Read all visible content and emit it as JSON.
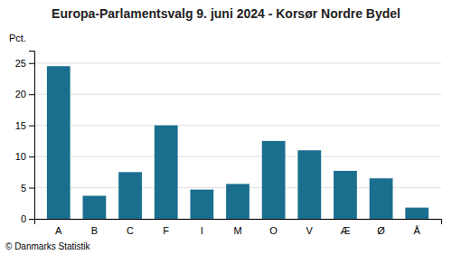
{
  "chart_data": {
    "type": "bar",
    "title": "Europa-Parlamentsvalg 9. juni 2024 - Korsør Nordre Bydel",
    "ylabel": "Pct.",
    "footer": "© Danmarks Statistik",
    "categories": [
      "A",
      "B",
      "C",
      "F",
      "I",
      "M",
      "O",
      "V",
      "Æ",
      "Ø",
      "Å"
    ],
    "values": [
      24.5,
      3.7,
      7.5,
      15.0,
      4.7,
      5.6,
      12.5,
      11.0,
      7.7,
      6.5,
      1.8
    ],
    "color": "#1a6e8e",
    "ylim": [
      0,
      27
    ],
    "yticks": [
      0,
      5,
      10,
      15,
      20,
      25
    ],
    "grid": true
  }
}
